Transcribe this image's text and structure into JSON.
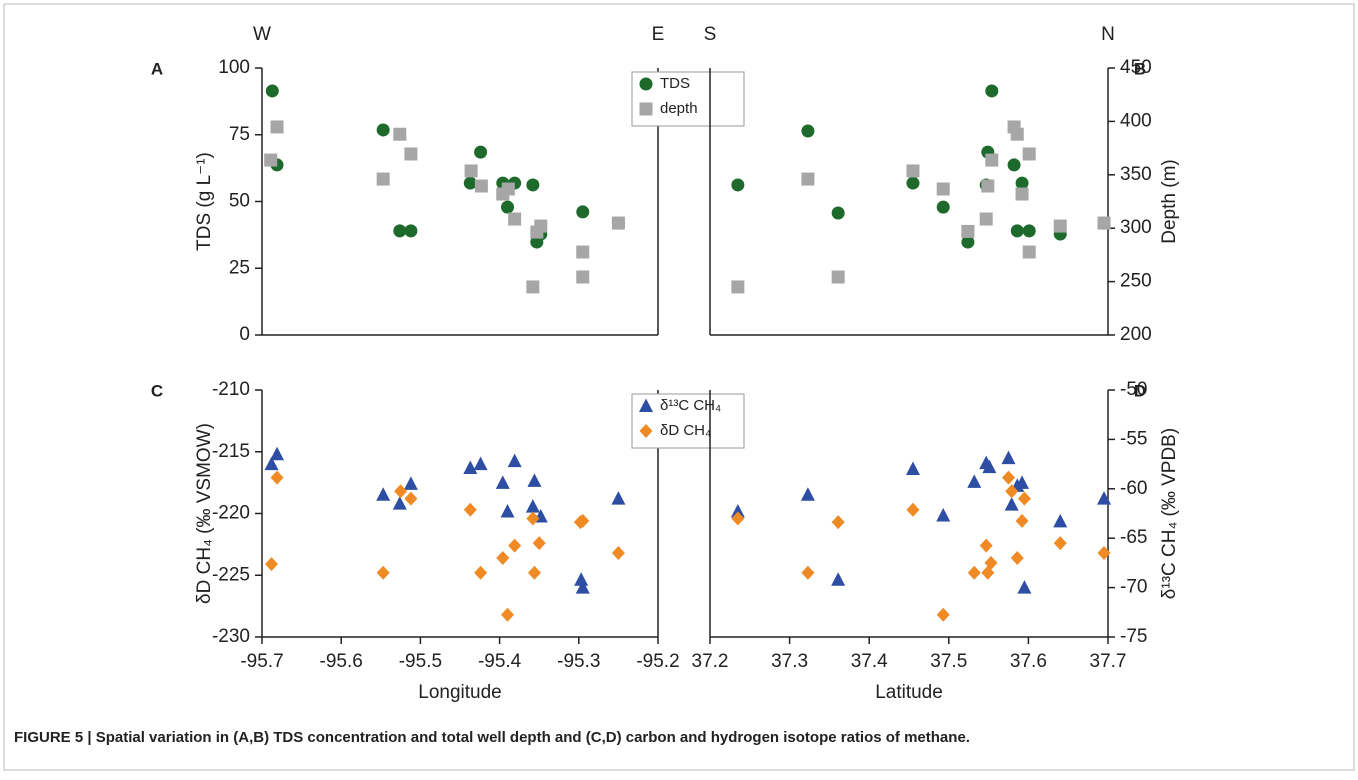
{
  "caption": "FIGURE 5 | Spatial variation in (A,B) TDS concentration and total well depth and (C,D) carbon and hydrogen isotope ratios of methane.",
  "chart_data": [
    {
      "type": "scatter",
      "panel": "A",
      "direction_labels": [
        "W",
        "E"
      ],
      "ylabel": "TDS (g L⁻¹)",
      "xlim": [
        -95.7,
        -95.2
      ],
      "ylim": [
        0,
        100
      ],
      "yticks": [
        0,
        25,
        50,
        75,
        100
      ],
      "y2lim": [
        200,
        450
      ],
      "legend": "top-right",
      "series": [
        {
          "name": "TDS",
          "color": "#1d6a2c",
          "marker": "circle",
          "x": [
            -95.687,
            -95.681,
            -95.547,
            -95.526,
            -95.512,
            -95.437,
            -95.424,
            -95.396,
            -95.39,
            -95.381,
            -95.358,
            -95.353,
            -95.348,
            -95.295,
            -95.25
          ],
          "values": [
            91.4,
            63.7,
            76.8,
            39,
            39,
            56.9,
            68.5,
            56.9,
            47.9,
            56.9,
            56.2,
            34.8,
            37.8,
            46.1,
            41.9
          ]
        },
        {
          "name": "depth",
          "color": "#a6a6a6",
          "marker": "square",
          "axis": "y2",
          "x": [
            -95.689,
            -95.681,
            -95.547,
            -95.526,
            -95.512,
            -95.436,
            -95.423,
            -95.396,
            -95.389,
            -95.381,
            -95.358,
            -95.353,
            -95.348,
            -95.295,
            -95.295,
            -95.25
          ],
          "values": [
            363.8,
            394.8,
            346,
            388,
            369.5,
            353.6,
            339.5,
            332,
            336.7,
            308.6,
            245,
            296.4,
            302,
            277.7,
            254.3,
            304.8
          ]
        }
      ]
    },
    {
      "type": "scatter",
      "panel": "B",
      "direction_labels": [
        "S",
        "N"
      ],
      "y2label": "Depth (m)",
      "xlim": [
        37.2,
        37.7
      ],
      "ylim": [
        0,
        100
      ],
      "y2lim": [
        200,
        450
      ],
      "y2ticks": [
        200,
        250,
        300,
        350,
        400,
        450
      ],
      "series": [
        {
          "color": "#1d6a2c",
          "marker": "circle",
          "x": [
            37.235,
            37.323,
            37.361,
            37.455,
            37.493,
            37.524,
            37.547,
            37.549,
            37.554,
            37.582,
            37.586,
            37.592,
            37.601,
            37.64,
            37.695
          ],
          "values": [
            56.2,
            76.4,
            45.7,
            56.9,
            47.9,
            34.8,
            56.2,
            68.5,
            91.4,
            63.7,
            39,
            56.9,
            39,
            37.8,
            41.9
          ]
        },
        {
          "color": "#a6a6a6",
          "marker": "square",
          "axis": "y2",
          "x": [
            37.235,
            37.323,
            37.361,
            37.455,
            37.493,
            37.524,
            37.547,
            37.549,
            37.554,
            37.582,
            37.586,
            37.592,
            37.601,
            37.601,
            37.64,
            37.695
          ],
          "values": [
            245,
            346,
            254.3,
            353.6,
            336.7,
            297,
            308.6,
            339.5,
            363.8,
            394.8,
            388,
            332,
            369.5,
            277.7,
            302,
            304.8
          ]
        }
      ]
    },
    {
      "type": "scatter",
      "panel": "C",
      "xlabel": "Longitude",
      "ylabel": "δD CH₄ (‰ VSMOW)",
      "xlim": [
        -95.7,
        -95.2
      ],
      "xticks": [
        -95.7,
        -95.6,
        -95.5,
        -95.4,
        -95.3,
        -95.2
      ],
      "ylim": [
        -230,
        -210
      ],
      "yticks": [
        -230,
        -225,
        -220,
        -215,
        -210
      ],
      "y2lim": [
        -75,
        -50
      ],
      "legend": "top-right",
      "series": [
        {
          "name": "δ¹³C CH₄",
          "color": "#2e4ea3",
          "marker": "triangle",
          "axis": "y2",
          "x": [
            -95.688,
            -95.681,
            -95.547,
            -95.526,
            -95.512,
            -95.437,
            -95.424,
            -95.396,
            -95.39,
            -95.381,
            -95.358,
            -95.356,
            -95.348,
            -95.297,
            -95.295,
            -95.25
          ],
          "values": [
            -57.5,
            -56.5,
            -60.6,
            -61.5,
            -59.5,
            -57.9,
            -57.5,
            -59.4,
            -62.3,
            -57.2,
            -61.8,
            -59.2,
            -62.8,
            -69.2,
            -70,
            -61
          ]
        },
        {
          "name": "δD CH₄",
          "color": "#f08a24",
          "marker": "diamond",
          "x": [
            -95.681,
            -95.688,
            -95.547,
            -95.525,
            -95.512,
            -95.437,
            -95.424,
            -95.396,
            -95.39,
            -95.381,
            -95.358,
            -95.356,
            -95.35,
            -95.298,
            -95.295,
            -95.25
          ],
          "values": [
            -217.1,
            -224.1,
            -224.8,
            -218.2,
            -218.8,
            -219.7,
            -224.8,
            -223.6,
            -228.2,
            -222.6,
            -220.4,
            -224.8,
            -222.4,
            -220.7,
            -220.6,
            -223.2
          ]
        }
      ]
    },
    {
      "type": "scatter",
      "panel": "D",
      "xlabel": "Latitude",
      "y2label": "δ¹³C CH₄ (‰ VPDB)",
      "xlim": [
        37.2,
        37.7
      ],
      "xticks": [
        37.2,
        37.3,
        37.4,
        37.5,
        37.6,
        37.7
      ],
      "ylim": [
        -230,
        -210
      ],
      "y2lim": [
        -75,
        -50
      ],
      "y2ticks": [
        -75,
        -70,
        -65,
        -60,
        -55,
        -50
      ],
      "series": [
        {
          "color": "#2e4ea3",
          "marker": "triangle",
          "axis": "y2",
          "x": [
            37.235,
            37.323,
            37.361,
            37.455,
            37.493,
            37.532,
            37.547,
            37.551,
            37.575,
            37.579,
            37.586,
            37.592,
            37.595,
            37.64,
            37.695
          ],
          "values": [
            -62.3,
            -60.6,
            -69.2,
            -58,
            -62.7,
            -59.3,
            -57.4,
            -57.8,
            -56.9,
            -61.6,
            -59.7,
            -59.4,
            -70,
            -63.3,
            -61
          ]
        },
        {
          "color": "#f08a24",
          "marker": "diamond",
          "x": [
            37.235,
            37.323,
            37.361,
            37.455,
            37.493,
            37.532,
            37.547,
            37.549,
            37.553,
            37.575,
            37.579,
            37.586,
            37.592,
            37.595,
            37.64,
            37.695
          ],
          "values": [
            -220.4,
            -224.8,
            -220.7,
            -219.7,
            -228.2,
            -224.8,
            -222.6,
            -224.8,
            -224,
            -217.1,
            -218.2,
            -223.6,
            -220.6,
            -218.8,
            -222.4,
            -223.2
          ]
        }
      ]
    }
  ]
}
